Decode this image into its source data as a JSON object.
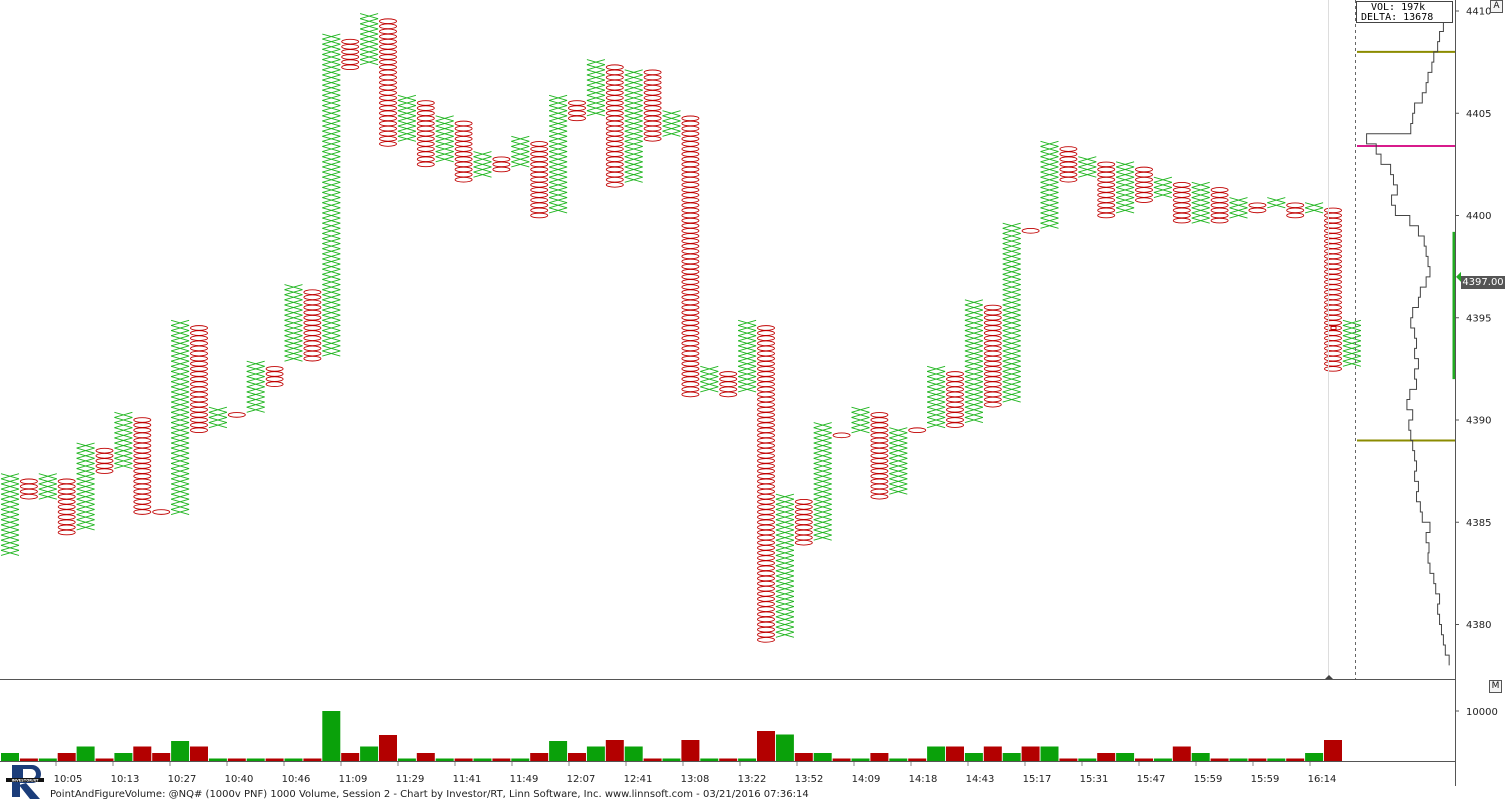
{
  "header": {
    "vol_text": "VOL: 197k",
    "delta_text": "DELTA: 13678",
    "auto_button": "A",
    "volume_pane_button": "M"
  },
  "last_price_label": "4397.00",
  "footer": {
    "text": "PointAndFigureVolume: @NQ# (1000v PNF) 1000 Volume, Session 2 - Chart by Investor/RT, Linn Software, Inc. www.linnsoft.com - 03/21/2016 07:36:14"
  },
  "colors": {
    "x_up": "#1fb51f",
    "o_down": "#c00000",
    "vol_up": "#0aa10a",
    "vol_down": "#b30000",
    "level_olive": "#8b8b00",
    "level_magenta": "#d81b8c",
    "profile": "#444444",
    "last_marker": "#22aa22"
  },
  "chart_data": {
    "type": "point_and_figure",
    "box_size": 0.25,
    "y_axis": {
      "range": [
        4377.6,
        4410.6
      ],
      "ticks": [
        4380,
        4385,
        4390,
        4395,
        4400,
        4405,
        4410
      ]
    },
    "x_axis": {
      "time_labels": [
        "10:05",
        "10:13",
        "10:27",
        "10:40",
        "10:46",
        "11:09",
        "11:29",
        "11:41",
        "11:49",
        "12:07",
        "12:41",
        "13:08",
        "13:22",
        "13:52",
        "14:09",
        "14:18",
        "14:43",
        "15:17",
        "15:31",
        "15:47",
        "15:59",
        "15:59",
        "16:14"
      ]
    },
    "columns": [
      {
        "type": "X",
        "low": 4383.5,
        "high": 4387.25
      },
      {
        "type": "O",
        "low": 4386.25,
        "high": 4387.0
      },
      {
        "type": "X",
        "low": 4386.25,
        "high": 4387.25
      },
      {
        "type": "O",
        "low": 4384.5,
        "high": 4387.0
      },
      {
        "type": "X",
        "low": 4384.75,
        "high": 4388.75
      },
      {
        "type": "O",
        "low": 4387.5,
        "high": 4388.5
      },
      {
        "type": "X",
        "low": 4387.75,
        "high": 4390.25
      },
      {
        "type": "O",
        "low": 4385.5,
        "high": 4390.0
      },
      {
        "type": "O",
        "low": 4385.5,
        "high": 4385.5
      },
      {
        "type": "X",
        "low": 4385.5,
        "high": 4394.75
      },
      {
        "type": "O",
        "low": 4389.5,
        "high": 4394.5
      },
      {
        "type": "X",
        "low": 4389.75,
        "high": 4390.5
      },
      {
        "type": "O",
        "low": 4390.25,
        "high": 4390.25
      },
      {
        "type": "X",
        "low": 4390.5,
        "high": 4392.75
      },
      {
        "type": "O",
        "low": 4391.75,
        "high": 4392.5
      },
      {
        "type": "X",
        "low": 4393.0,
        "high": 4396.5
      },
      {
        "type": "O",
        "low": 4393.0,
        "high": 4396.25
      },
      {
        "type": "X",
        "low": 4393.25,
        "high": 4408.75
      },
      {
        "type": "O",
        "low": 4407.25,
        "high": 4408.5
      },
      {
        "type": "X",
        "low": 4407.5,
        "high": 4409.75
      },
      {
        "type": "O",
        "low": 4403.5,
        "high": 4409.5
      },
      {
        "type": "X",
        "low": 4403.75,
        "high": 4405.75
      },
      {
        "type": "O",
        "low": 4402.5,
        "high": 4405.5
      },
      {
        "type": "X",
        "low": 4402.75,
        "high": 4404.75
      },
      {
        "type": "O",
        "low": 4401.75,
        "high": 4404.5
      },
      {
        "type": "X",
        "low": 4402.0,
        "high": 4403.0
      },
      {
        "type": "O",
        "low": 4402.25,
        "high": 4402.75
      },
      {
        "type": "X",
        "low": 4402.5,
        "high": 4403.75
      },
      {
        "type": "O",
        "low": 4400.0,
        "high": 4403.5
      },
      {
        "type": "X",
        "low": 4400.25,
        "high": 4405.75
      },
      {
        "type": "O",
        "low": 4404.75,
        "high": 4405.5
      },
      {
        "type": "X",
        "low": 4405.0,
        "high": 4407.5
      },
      {
        "type": "O",
        "low": 4401.5,
        "high": 4407.25
      },
      {
        "type": "X",
        "low": 4401.75,
        "high": 4407.0
      },
      {
        "type": "O",
        "low": 4403.75,
        "high": 4407.0
      },
      {
        "type": "X",
        "low": 4404.0,
        "high": 4405.0
      },
      {
        "type": "O",
        "low": 4391.25,
        "high": 4404.75
      },
      {
        "type": "X",
        "low": 4391.5,
        "high": 4392.5
      },
      {
        "type": "O",
        "low": 4391.25,
        "high": 4392.25
      },
      {
        "type": "X",
        "low": 4391.5,
        "high": 4394.75
      },
      {
        "type": "O",
        "low": 4379.25,
        "high": 4394.5
      },
      {
        "type": "X",
        "low": 4379.5,
        "high": 4386.25
      },
      {
        "type": "O",
        "low": 4384.0,
        "high": 4386.0
      },
      {
        "type": "X",
        "low": 4384.25,
        "high": 4389.75
      },
      {
        "type": "O",
        "low": 4389.25,
        "high": 4389.25
      },
      {
        "type": "X",
        "low": 4389.5,
        "high": 4390.5
      },
      {
        "type": "O",
        "low": 4386.25,
        "high": 4390.25
      },
      {
        "type": "X",
        "low": 4386.5,
        "high": 4389.5
      },
      {
        "type": "O",
        "low": 4389.5,
        "high": 4389.5
      },
      {
        "type": "X",
        "low": 4389.75,
        "high": 4392.5
      },
      {
        "type": "O",
        "low": 4389.75,
        "high": 4392.25
      },
      {
        "type": "X",
        "low": 4390.0,
        "high": 4395.75
      },
      {
        "type": "O",
        "low": 4390.75,
        "high": 4395.5
      },
      {
        "type": "X",
        "low": 4391.0,
        "high": 4399.5
      },
      {
        "type": "O",
        "low": 4399.25,
        "high": 4399.25
      },
      {
        "type": "X",
        "low": 4399.5,
        "high": 4403.5
      },
      {
        "type": "O",
        "low": 4401.75,
        "high": 4403.25
      },
      {
        "type": "X",
        "low": 4402.0,
        "high": 4402.75
      },
      {
        "type": "O",
        "low": 4400.0,
        "high": 4402.5
      },
      {
        "type": "X",
        "low": 4400.25,
        "high": 4402.5
      },
      {
        "type": "O",
        "low": 4400.75,
        "high": 4402.25
      },
      {
        "type": "X",
        "low": 4401.0,
        "high": 4401.75
      },
      {
        "type": "O",
        "low": 4399.75,
        "high": 4401.5
      },
      {
        "type": "X",
        "low": 4399.75,
        "high": 4401.5
      },
      {
        "type": "O",
        "low": 4399.75,
        "high": 4401.25
      },
      {
        "type": "X",
        "low": 4400.0,
        "high": 4400.75
      },
      {
        "type": "O",
        "low": 4400.25,
        "high": 4400.5
      },
      {
        "type": "X",
        "low": 4400.5,
        "high": 4400.75
      },
      {
        "type": "O",
        "low": 4400.0,
        "high": 4400.5
      },
      {
        "type": "X",
        "low": 4400.25,
        "high": 4400.5
      },
      {
        "type": "O",
        "low": 4392.5,
        "high": 4400.25
      },
      {
        "type": "X",
        "low": 4392.75,
        "high": 4394.75
      }
    ],
    "volume_pane": {
      "tick": 10000,
      "range": [
        0,
        10000
      ]
    },
    "volume": [
      {
        "v": 1600,
        "up": true
      },
      {
        "v": 500,
        "up": false
      },
      {
        "v": 500,
        "up": true
      },
      {
        "v": 1600,
        "up": false
      },
      {
        "v": 2900,
        "up": true
      },
      {
        "v": 500,
        "up": false
      },
      {
        "v": 1600,
        "up": true
      },
      {
        "v": 2900,
        "up": false
      },
      {
        "v": 1600,
        "up": false
      },
      {
        "v": 4000,
        "up": true
      },
      {
        "v": 2900,
        "up": false
      },
      {
        "v": 500,
        "up": true
      },
      {
        "v": 500,
        "up": false
      },
      {
        "v": 500,
        "up": true
      },
      {
        "v": 500,
        "up": false
      },
      {
        "v": 500,
        "up": true
      },
      {
        "v": 500,
        "up": false
      },
      {
        "v": 10000,
        "up": true
      },
      {
        "v": 1600,
        "up": false
      },
      {
        "v": 2900,
        "up": true
      },
      {
        "v": 5200,
        "up": false
      },
      {
        "v": 500,
        "up": true
      },
      {
        "v": 1600,
        "up": false
      },
      {
        "v": 500,
        "up": true
      },
      {
        "v": 500,
        "up": false
      },
      {
        "v": 500,
        "up": true
      },
      {
        "v": 500,
        "up": false
      },
      {
        "v": 500,
        "up": true
      },
      {
        "v": 1600,
        "up": false
      },
      {
        "v": 4000,
        "up": true
      },
      {
        "v": 1600,
        "up": false
      },
      {
        "v": 2900,
        "up": true
      },
      {
        "v": 4200,
        "up": false
      },
      {
        "v": 2900,
        "up": true
      },
      {
        "v": 500,
        "up": false
      },
      {
        "v": 500,
        "up": true
      },
      {
        "v": 4200,
        "up": false
      },
      {
        "v": 500,
        "up": true
      },
      {
        "v": 500,
        "up": false
      },
      {
        "v": 500,
        "up": true
      },
      {
        "v": 6000,
        "up": false
      },
      {
        "v": 5300,
        "up": true
      },
      {
        "v": 1600,
        "up": false
      },
      {
        "v": 1600,
        "up": true
      },
      {
        "v": 500,
        "up": false
      },
      {
        "v": 500,
        "up": true
      },
      {
        "v": 1600,
        "up": false
      },
      {
        "v": 500,
        "up": true
      },
      {
        "v": 500,
        "up": false
      },
      {
        "v": 2900,
        "up": true
      },
      {
        "v": 2900,
        "up": false
      },
      {
        "v": 1600,
        "up": true
      },
      {
        "v": 2900,
        "up": false
      },
      {
        "v": 1600,
        "up": true
      },
      {
        "v": 2900,
        "up": false
      },
      {
        "v": 2900,
        "up": true
      },
      {
        "v": 500,
        "up": false
      },
      {
        "v": 500,
        "up": true
      },
      {
        "v": 1600,
        "up": false
      },
      {
        "v": 1600,
        "up": true
      },
      {
        "v": 500,
        "up": false
      },
      {
        "v": 500,
        "up": true
      },
      {
        "v": 2900,
        "up": false
      },
      {
        "v": 1600,
        "up": true
      },
      {
        "v": 500,
        "up": false
      },
      {
        "v": 500,
        "up": true
      },
      {
        "v": 500,
        "up": false
      },
      {
        "v": 500,
        "up": true
      },
      {
        "v": 500,
        "up": false
      },
      {
        "v": 1600,
        "up": true
      },
      {
        "v": 4200,
        "up": false
      }
    ],
    "levels": [
      {
        "price": 4408.0,
        "color": "olive"
      },
      {
        "price": 4403.4,
        "color": "magenta"
      },
      {
        "price": 4389.0,
        "color": "olive"
      }
    ],
    "last_price": 4397.0,
    "last_range": [
      4392.0,
      4399.2
    ],
    "profile": [
      [
        4410.2,
        0.95
      ],
      [
        4409.5,
        0.92
      ],
      [
        4409.0,
        0.9
      ],
      [
        4408.5,
        0.86
      ],
      [
        4408.0,
        0.84
      ],
      [
        4407.5,
        0.8
      ],
      [
        4407.0,
        0.78
      ],
      [
        4406.5,
        0.74
      ],
      [
        4406.0,
        0.72
      ],
      [
        4405.5,
        0.68
      ],
      [
        4405.0,
        0.6
      ],
      [
        4404.5,
        0.58
      ],
      [
        4404.0,
        0.56
      ],
      [
        4403.5,
        0.1
      ],
      [
        4403.0,
        0.2
      ],
      [
        4402.5,
        0.25
      ],
      [
        4402.0,
        0.35
      ],
      [
        4401.5,
        0.38
      ],
      [
        4401.0,
        0.42
      ],
      [
        4400.5,
        0.36
      ],
      [
        4400.0,
        0.4
      ],
      [
        4399.5,
        0.55
      ],
      [
        4399.0,
        0.64
      ],
      [
        4398.5,
        0.7
      ],
      [
        4398.0,
        0.72
      ],
      [
        4397.5,
        0.74
      ],
      [
        4397.0,
        0.76
      ],
      [
        4396.5,
        0.72
      ],
      [
        4396.0,
        0.66
      ],
      [
        4395.5,
        0.64
      ],
      [
        4395.0,
        0.58
      ],
      [
        4394.5,
        0.56
      ],
      [
        4394.0,
        0.6
      ],
      [
        4393.5,
        0.62
      ],
      [
        4393.0,
        0.6
      ],
      [
        4392.5,
        0.64
      ],
      [
        4392.0,
        0.6
      ],
      [
        4391.5,
        0.62
      ],
      [
        4391.0,
        0.55
      ],
      [
        4390.5,
        0.52
      ],
      [
        4390.0,
        0.58
      ],
      [
        4389.5,
        0.54
      ],
      [
        4389.0,
        0.56
      ],
      [
        4388.5,
        0.58
      ],
      [
        4388.0,
        0.6
      ],
      [
        4387.5,
        0.62
      ],
      [
        4387.0,
        0.6
      ],
      [
        4386.5,
        0.64
      ],
      [
        4386.0,
        0.62
      ],
      [
        4385.5,
        0.66
      ],
      [
        4385.0,
        0.68
      ],
      [
        4384.5,
        0.76
      ],
      [
        4384.0,
        0.72
      ],
      [
        4383.5,
        0.75
      ],
      [
        4383.0,
        0.74
      ],
      [
        4382.5,
        0.76
      ],
      [
        4382.0,
        0.8
      ],
      [
        4381.5,
        0.82
      ],
      [
        4381.0,
        0.86
      ],
      [
        4380.5,
        0.84
      ],
      [
        4380.0,
        0.86
      ],
      [
        4379.5,
        0.88
      ],
      [
        4379.0,
        0.9
      ],
      [
        4378.5,
        0.92
      ],
      [
        4378.0,
        0.96
      ]
    ]
  }
}
